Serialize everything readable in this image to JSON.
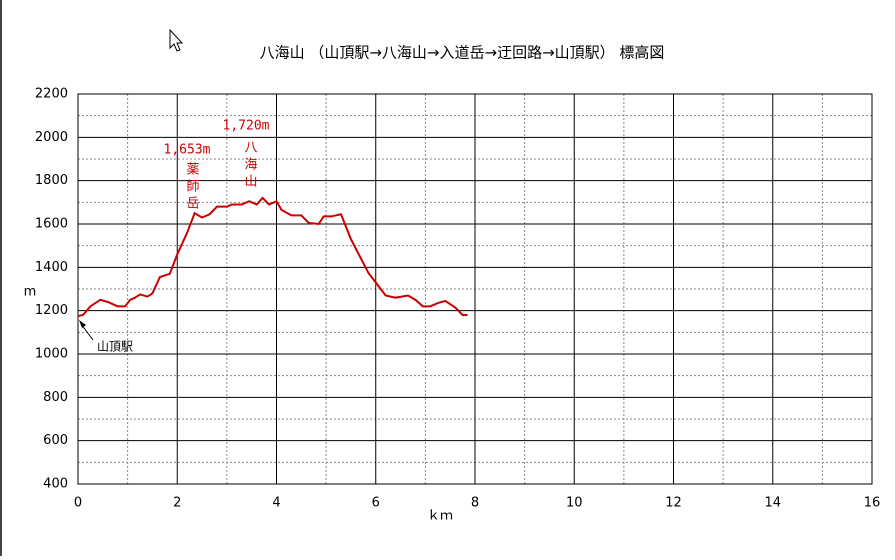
{
  "chart_data": {
    "type": "line",
    "title": "八海山 （山頂駅→八海山→入道岳→迂回路→山頂駅） 標高図",
    "x_label": "ｋｍ",
    "y_label": "m",
    "color": "#cc0000",
    "x": [
      0,
      0.1,
      0.25,
      0.45,
      0.6,
      0.8,
      0.95,
      1.05,
      1.15,
      1.25,
      1.4,
      1.5,
      1.65,
      1.85,
      2.0,
      2.2,
      2.35,
      2.5,
      2.65,
      2.8,
      3.0,
      3.1,
      3.3,
      3.45,
      3.6,
      3.72,
      3.85,
      4.0,
      4.1,
      4.3,
      4.5,
      4.65,
      4.85,
      4.95,
      5.1,
      5.3,
      5.5,
      5.85,
      6.0,
      6.2,
      6.4,
      6.65,
      6.8,
      6.95,
      7.1,
      7.25,
      7.4,
      7.6,
      7.75,
      7.85
    ],
    "values": [
      1175,
      1180,
      1220,
      1250,
      1240,
      1220,
      1220,
      1250,
      1260,
      1275,
      1265,
      1280,
      1355,
      1370,
      1460,
      1560,
      1650,
      1630,
      1645,
      1680,
      1680,
      1690,
      1690,
      1705,
      1690,
      1720,
      1690,
      1705,
      1665,
      1640,
      1640,
      1605,
      1600,
      1635,
      1635,
      1645,
      1530,
      1375,
      1330,
      1270,
      1260,
      1270,
      1250,
      1220,
      1220,
      1235,
      1245,
      1215,
      1180,
      1180
    ],
    "xlim": [
      0,
      16
    ],
    "xticks": [
      0,
      2,
      4,
      6,
      8,
      10,
      12,
      14,
      16
    ],
    "ylim": [
      400,
      2200
    ],
    "yticks": [
      400,
      600,
      800,
      1000,
      1200,
      1400,
      1600,
      1800,
      2000,
      2200
    ],
    "grid": true,
    "annotations": [
      "1,720m",
      "八海山",
      "1,653m",
      "薬師岳",
      "山頂駅"
    ]
  }
}
